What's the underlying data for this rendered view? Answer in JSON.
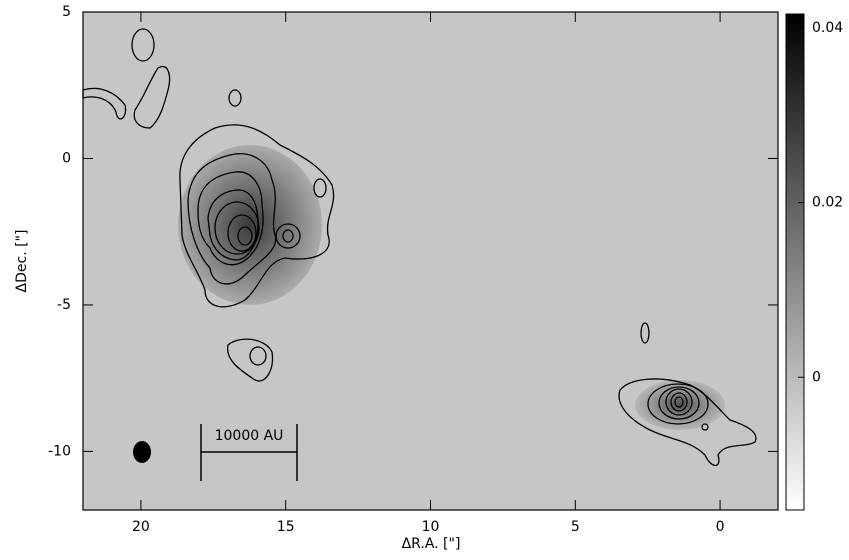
{
  "chart_data": {
    "type": "contour",
    "xlabel": "ΔR.A. [\"]",
    "ylabel": "ΔDec. [\"]",
    "xlim": [
      22,
      -2
    ],
    "ylim": [
      -12,
      5
    ],
    "xticks": [
      20,
      15,
      10,
      5,
      0
    ],
    "yticks": [
      5,
      0,
      -5,
      -10
    ],
    "colorbar": {
      "lim": [
        -0.0152,
        0.0416
      ],
      "ticks": [
        0,
        0.02,
        0.04
      ]
    },
    "scalebar_label": "10000 AU"
  }
}
